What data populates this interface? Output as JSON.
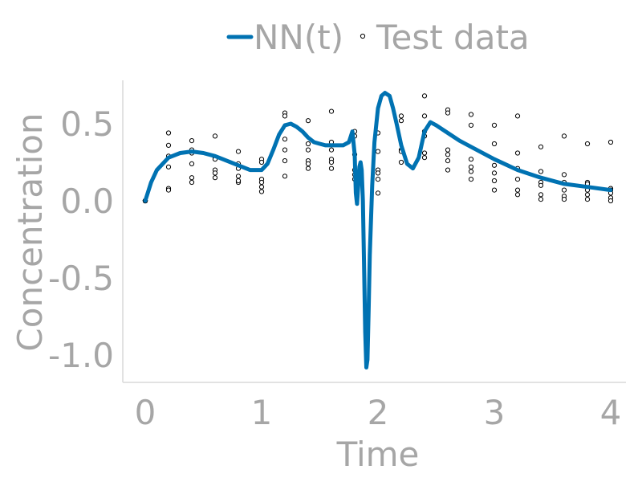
{
  "chart_data": {
    "type": "line",
    "title": "",
    "xlabel": "Time",
    "ylabel": "Concentration",
    "xlim": [
      0,
      4
    ],
    "ylim": [
      -1.15,
      0.78
    ],
    "xticks": [
      0,
      1,
      2,
      3,
      4
    ],
    "xtick_labels": [
      "0",
      "1",
      "2",
      "3",
      "4"
    ],
    "yticks": [
      0.5,
      0.0,
      -0.5,
      -1.0
    ],
    "ytick_labels": [
      "0.5",
      "0.0",
      "-0.5",
      "-1.0"
    ],
    "grid": false,
    "legend_placement": "top-center",
    "series": [
      {
        "name": "NN(t)",
        "kind": "line",
        "color": "#0072b2",
        "x": [
          0,
          0.05,
          0.1,
          0.2,
          0.3,
          0.4,
          0.5,
          0.6,
          0.7,
          0.8,
          0.9,
          1.0,
          1.05,
          1.1,
          1.15,
          1.2,
          1.25,
          1.3,
          1.35,
          1.4,
          1.45,
          1.5,
          1.55,
          1.6,
          1.65,
          1.7,
          1.75,
          1.78,
          1.8,
          1.81,
          1.82,
          1.83,
          1.84,
          1.85,
          1.86,
          1.87,
          1.88,
          1.89,
          1.9,
          1.91,
          1.92,
          1.93,
          1.95,
          1.97,
          2.0,
          2.03,
          2.06,
          2.1,
          2.13,
          2.16,
          2.2,
          2.25,
          2.3,
          2.35,
          2.4,
          2.45,
          2.5,
          2.6,
          2.7,
          2.8,
          3.0,
          3.2,
          3.4,
          3.6,
          3.8,
          4.0
        ],
        "values": [
          0.0,
          0.12,
          0.2,
          0.28,
          0.31,
          0.32,
          0.31,
          0.29,
          0.26,
          0.23,
          0.2,
          0.2,
          0.24,
          0.33,
          0.43,
          0.49,
          0.5,
          0.48,
          0.45,
          0.41,
          0.38,
          0.37,
          0.36,
          0.36,
          0.36,
          0.36,
          0.38,
          0.45,
          0.3,
          0.05,
          -0.02,
          0.1,
          0.22,
          0.25,
          0.2,
          0.0,
          -0.4,
          -0.85,
          -1.08,
          -1.03,
          -0.7,
          -0.35,
          0.1,
          0.38,
          0.6,
          0.68,
          0.7,
          0.68,
          0.6,
          0.5,
          0.36,
          0.24,
          0.21,
          0.28,
          0.45,
          0.51,
          0.49,
          0.44,
          0.39,
          0.35,
          0.27,
          0.2,
          0.15,
          0.11,
          0.09,
          0.07
        ]
      },
      {
        "name": "Test data",
        "kind": "scatter",
        "color": "#000000",
        "points": [
          [
            0,
            0.0
          ],
          [
            0,
            0.0
          ],
          [
            0,
            0.0
          ],
          [
            0,
            0.0
          ],
          [
            0,
            0.0
          ],
          [
            0,
            0.0
          ],
          [
            0.2,
            0.44
          ],
          [
            0.2,
            0.36
          ],
          [
            0.2,
            0.22
          ],
          [
            0.2,
            0.08
          ],
          [
            0.2,
            0.07
          ],
          [
            0.2,
            0.29
          ],
          [
            0.4,
            0.39
          ],
          [
            0.4,
            0.31
          ],
          [
            0.4,
            0.24
          ],
          [
            0.4,
            0.15
          ],
          [
            0.4,
            0.12
          ],
          [
            0.4,
            0.33
          ],
          [
            0.6,
            0.42
          ],
          [
            0.6,
            0.28
          ],
          [
            0.6,
            0.2
          ],
          [
            0.6,
            0.15
          ],
          [
            0.6,
            0.27
          ],
          [
            0.6,
            0.18
          ],
          [
            0.8,
            0.32
          ],
          [
            0.8,
            0.24
          ],
          [
            0.8,
            0.21
          ],
          [
            0.8,
            0.16
          ],
          [
            0.8,
            0.12
          ],
          [
            0.8,
            0.13
          ],
          [
            1.0,
            0.27
          ],
          [
            1.0,
            0.25
          ],
          [
            1.0,
            0.14
          ],
          [
            1.0,
            0.12
          ],
          [
            1.0,
            0.09
          ],
          [
            1.0,
            0.06
          ],
          [
            1.2,
            0.57
          ],
          [
            1.2,
            0.55
          ],
          [
            1.2,
            0.4
          ],
          [
            1.2,
            0.33
          ],
          [
            1.2,
            0.26
          ],
          [
            1.2,
            0.16
          ],
          [
            1.4,
            0.52
          ],
          [
            1.4,
            0.37
          ],
          [
            1.4,
            0.33
          ],
          [
            1.4,
            0.26
          ],
          [
            1.4,
            0.21
          ],
          [
            1.4,
            0.24
          ],
          [
            1.6,
            0.58
          ],
          [
            1.6,
            0.38
          ],
          [
            1.6,
            0.33
          ],
          [
            1.6,
            0.27
          ],
          [
            1.6,
            0.21
          ],
          [
            1.6,
            0.25
          ],
          [
            1.8,
            0.45
          ],
          [
            1.8,
            0.42
          ],
          [
            1.8,
            0.3
          ],
          [
            1.8,
            0.2
          ],
          [
            1.8,
            0.17
          ],
          [
            1.8,
            0.14
          ],
          [
            2.0,
            0.44
          ],
          [
            2.0,
            0.32
          ],
          [
            2.0,
            0.2
          ],
          [
            2.0,
            0.18
          ],
          [
            2.0,
            0.14
          ],
          [
            2.0,
            0.05
          ],
          [
            2.2,
            0.55
          ],
          [
            2.2,
            0.52
          ],
          [
            2.2,
            0.33
          ],
          [
            2.2,
            0.32
          ],
          [
            2.2,
            0.25
          ],
          [
            2.4,
            0.68
          ],
          [
            2.4,
            0.55
          ],
          [
            2.4,
            0.45
          ],
          [
            2.4,
            0.42
          ],
          [
            2.4,
            0.31
          ],
          [
            2.4,
            0.28
          ],
          [
            2.6,
            0.59
          ],
          [
            2.6,
            0.57
          ],
          [
            2.6,
            0.33
          ],
          [
            2.6,
            0.3
          ],
          [
            2.6,
            0.26
          ],
          [
            2.6,
            0.2
          ],
          [
            2.8,
            0.56
          ],
          [
            2.8,
            0.49
          ],
          [
            2.8,
            0.27
          ],
          [
            2.8,
            0.22
          ],
          [
            2.8,
            0.19
          ],
          [
            2.8,
            0.14
          ],
          [
            3.0,
            0.49
          ],
          [
            3.0,
            0.37
          ],
          [
            3.0,
            0.23
          ],
          [
            3.0,
            0.18
          ],
          [
            3.0,
            0.13
          ],
          [
            3.0,
            0.07
          ],
          [
            3.2,
            0.55
          ],
          [
            3.2,
            0.31
          ],
          [
            3.2,
            0.21
          ],
          [
            3.2,
            0.14
          ],
          [
            3.2,
            0.07
          ],
          [
            3.2,
            0.04
          ],
          [
            3.4,
            0.35
          ],
          [
            3.4,
            0.19
          ],
          [
            3.4,
            0.12
          ],
          [
            3.4,
            0.1
          ],
          [
            3.4,
            0.04
          ],
          [
            3.4,
            0.01
          ],
          [
            3.6,
            0.42
          ],
          [
            3.6,
            0.17
          ],
          [
            3.6,
            0.12
          ],
          [
            3.6,
            0.07
          ],
          [
            3.6,
            0.03
          ],
          [
            3.6,
            0.01
          ],
          [
            3.8,
            0.37
          ],
          [
            3.8,
            0.12
          ],
          [
            3.8,
            0.11
          ],
          [
            3.8,
            0.07
          ],
          [
            3.8,
            0.04
          ],
          [
            3.8,
            0.01
          ],
          [
            4.0,
            0.38
          ],
          [
            4.0,
            0.08
          ],
          [
            4.0,
            0.07
          ],
          [
            4.0,
            0.05
          ],
          [
            4.0,
            0.02
          ],
          [
            4.0,
            0.0
          ]
        ]
      }
    ]
  }
}
